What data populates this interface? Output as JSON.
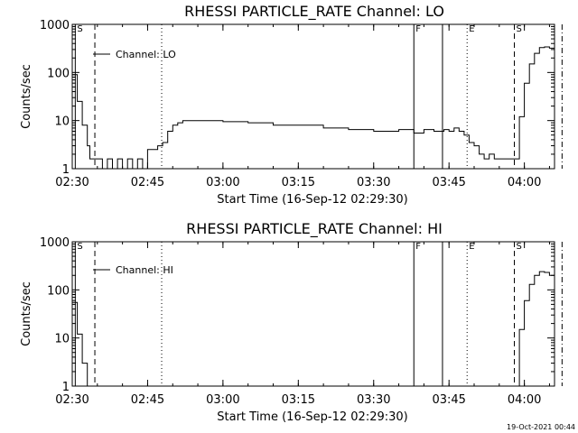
{
  "chart_data": [
    {
      "type": "line",
      "title": "RHESSI PARTICLE_RATE Channel: LO",
      "xlabel": "Start Time (16-Sep-12 02:29:30)",
      "ylabel": "Counts/sec",
      "yscale": "log",
      "ylim": [
        1,
        1000
      ],
      "xlim_minutes_after_0230": [
        0,
        96
      ],
      "x_ticks": [
        {
          "t": 0,
          "label": "02:30"
        },
        {
          "t": 15,
          "label": "02:45"
        },
        {
          "t": 30,
          "label": "03:00"
        },
        {
          "t": 45,
          "label": "03:15"
        },
        {
          "t": 60,
          "label": "03:30"
        },
        {
          "t": 75,
          "label": "03:45"
        },
        {
          "t": 90,
          "label": "04:00"
        }
      ],
      "y_ticks": [
        {
          "v": 1,
          "label": "1"
        },
        {
          "v": 10,
          "label": "10"
        },
        {
          "v": 100,
          "label": "100"
        },
        {
          "v": 1000,
          "label": "1000"
        }
      ],
      "legend": "Channel: LO",
      "markers": [
        {
          "t": 0.6,
          "style": "solid",
          "label": "S"
        },
        {
          "t": 4.5,
          "style": "dashed",
          "label": ""
        },
        {
          "t": 17.8,
          "style": "dotted",
          "label": ""
        },
        {
          "t": 68.0,
          "style": "solid",
          "label": "F"
        },
        {
          "t": 73.7,
          "style": "solid",
          "label": ""
        },
        {
          "t": 78.6,
          "style": "dotted",
          "label": "E"
        },
        {
          "t": 88.0,
          "style": "dashed",
          "label": "S"
        },
        {
          "t": 97.5,
          "style": "dashdot",
          "label": ""
        }
      ],
      "x": [
        0,
        1,
        2,
        3,
        3.5,
        4,
        5,
        6,
        7,
        8,
        9,
        10,
        11,
        12,
        13,
        14,
        15,
        16,
        17,
        18,
        19,
        20,
        21,
        22,
        25,
        30,
        35,
        40,
        45,
        50,
        55,
        60,
        65,
        68,
        70,
        72,
        74,
        75,
        76,
        77,
        78,
        79,
        80,
        81,
        82,
        83,
        84,
        85,
        86,
        87,
        88,
        89,
        90,
        91,
        92,
        93,
        94,
        95,
        96
      ],
      "values": [
        90,
        25,
        8,
        3,
        1.6,
        1.6,
        1.6,
        1,
        1.6,
        1,
        1.6,
        1,
        1.6,
        1,
        1.6,
        1,
        2.5,
        2.5,
        3,
        3.5,
        6,
        8,
        9,
        10,
        10,
        9.5,
        9,
        8,
        8,
        7,
        6.5,
        6,
        6.5,
        5.5,
        6.5,
        6,
        6.5,
        6,
        7,
        6,
        5,
        3.5,
        3,
        2,
        1.6,
        2,
        1.6,
        1.6,
        1.6,
        1.6,
        1.6,
        12,
        60,
        150,
        250,
        330,
        340,
        320,
        250
      ]
    },
    {
      "type": "line",
      "title": "RHESSI PARTICLE_RATE Channel: HI",
      "xlabel": "Start Time (16-Sep-12 02:29:30)",
      "ylabel": "Counts/sec",
      "yscale": "log",
      "ylim": [
        1,
        1000
      ],
      "xlim_minutes_after_0230": [
        0,
        96
      ],
      "x_ticks": [
        {
          "t": 0,
          "label": "02:30"
        },
        {
          "t": 15,
          "label": "02:45"
        },
        {
          "t": 30,
          "label": "03:00"
        },
        {
          "t": 45,
          "label": "03:15"
        },
        {
          "t": 60,
          "label": "03:30"
        },
        {
          "t": 75,
          "label": "03:45"
        },
        {
          "t": 90,
          "label": "04:00"
        }
      ],
      "y_ticks": [
        {
          "v": 1,
          "label": "1"
        },
        {
          "v": 10,
          "label": "10"
        },
        {
          "v": 100,
          "label": "100"
        },
        {
          "v": 1000,
          "label": "1000"
        }
      ],
      "legend": "Channel: HI",
      "markers": [
        {
          "t": 0.6,
          "style": "solid",
          "label": "S"
        },
        {
          "t": 4.5,
          "style": "dashed",
          "label": ""
        },
        {
          "t": 17.8,
          "style": "dotted",
          "label": ""
        },
        {
          "t": 68.0,
          "style": "solid",
          "label": "F"
        },
        {
          "t": 73.7,
          "style": "solid",
          "label": ""
        },
        {
          "t": 78.6,
          "style": "dotted",
          "label": "E"
        },
        {
          "t": 88.0,
          "style": "dashed",
          "label": "S"
        },
        {
          "t": 97.5,
          "style": "dashdot",
          "label": ""
        }
      ],
      "x": [
        0,
        1,
        2,
        3,
        88,
        89,
        90,
        91,
        92,
        93,
        94,
        95,
        96
      ],
      "values": [
        55,
        12,
        3,
        1,
        1,
        15,
        60,
        130,
        200,
        240,
        230,
        200,
        160
      ]
    }
  ],
  "footer_timestamp": "19-Oct-2021 00:44"
}
